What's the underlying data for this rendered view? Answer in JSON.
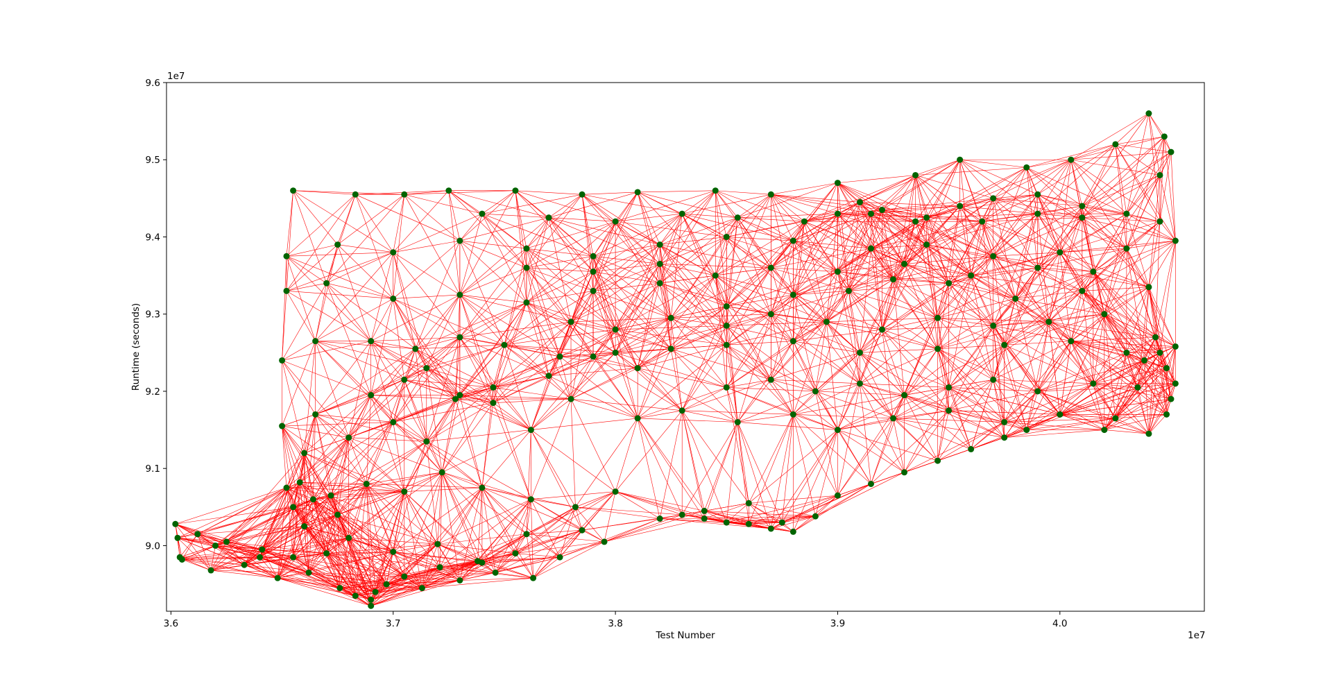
{
  "chart_data": {
    "type": "scatter",
    "title": "",
    "xlabel": "Test Number",
    "ylabel": "Runtime (seconds)",
    "x_offset_label": "1e7",
    "y_offset_label": "1e7",
    "xlim": [
      3.598,
      4.065
    ],
    "ylim": [
      8.915,
      9.6
    ],
    "xticks": [
      3.6,
      3.7,
      3.8,
      3.9,
      4.0
    ],
    "xtick_labels": [
      "3.6",
      "3.7",
      "3.8",
      "3.9",
      "4.0"
    ],
    "yticks": [
      9.0,
      9.1,
      9.2,
      9.3,
      9.4,
      9.5,
      9.6
    ],
    "ytick_labels": [
      "9.0",
      "9.1",
      "9.2",
      "9.3",
      "9.4",
      "9.5",
      "9.6"
    ],
    "grid": false,
    "legend": "none",
    "point_color": "#006400",
    "edge_color": "#ff0000",
    "series": [
      {
        "x": [
          3.602,
          3.603,
          3.605,
          3.612,
          3.618,
          3.625,
          3.633,
          3.641,
          3.648,
          3.655,
          3.662,
          3.67,
          3.676,
          3.683,
          3.69,
          3.697,
          3.705,
          3.713,
          3.721,
          3.73,
          3.738,
          3.746,
          3.755,
          3.763,
          3.604,
          3.62,
          3.64,
          3.66,
          3.68,
          3.7,
          3.72,
          3.74,
          3.76,
          3.775,
          3.785,
          3.795,
          3.69,
          3.692,
          3.675,
          3.664,
          3.655,
          3.652,
          3.658,
          3.672,
          3.688,
          3.705,
          3.722,
          3.74,
          3.762,
          3.782,
          3.8,
          3.82,
          3.84,
          3.86,
          3.875,
          3.89,
          3.88,
          3.87,
          3.86,
          3.85,
          3.84,
          3.83,
          3.9,
          3.915,
          3.93,
          3.945,
          3.96,
          3.975,
          3.985,
          4.0,
          4.02,
          4.04,
          4.048,
          4.05,
          4.052,
          4.048,
          4.045,
          4.043,
          4.038,
          3.66,
          3.68,
          3.7,
          3.715,
          3.728,
          3.745,
          3.762,
          3.78,
          3.65,
          3.665,
          3.69,
          3.705,
          3.715,
          3.73,
          3.745,
          3.77,
          3.79,
          3.81,
          3.65,
          3.665,
          3.69,
          3.71,
          3.73,
          3.75,
          3.775,
          3.8,
          3.825,
          3.85,
          3.88,
          3.91,
          3.945,
          3.975,
          4.005,
          4.03,
          4.052,
          3.652,
          3.67,
          3.7,
          3.73,
          3.76,
          3.79,
          3.82,
          3.85,
          3.88,
          3.905,
          3.925,
          3.95,
          3.98,
          4.01,
          4.04,
          3.652,
          3.675,
          3.7,
          3.73,
          3.76,
          3.79,
          3.82,
          3.85,
          3.88,
          3.915,
          3.94,
          3.97,
          4.0,
          4.03,
          4.052,
          3.655,
          3.683,
          3.705,
          3.725,
          3.755,
          3.785,
          3.81,
          3.845,
          3.87,
          3.9,
          3.935,
          3.955,
          3.985,
          4.005,
          4.025,
          4.04,
          4.047,
          4.05,
          4.045,
          3.9,
          3.91,
          3.92,
          3.935,
          3.955,
          3.97,
          3.99,
          4.01,
          4.03,
          4.045,
          3.85,
          3.87,
          3.89,
          3.91,
          3.93,
          3.95,
          3.97,
          3.99,
          4.015,
          4.035,
          3.81,
          3.83,
          3.855,
          3.88,
          3.9,
          3.925,
          3.95,
          3.975,
          4.0,
          4.025,
          3.78,
          3.8,
          3.825,
          3.85,
          3.87,
          3.895,
          3.92,
          3.945,
          3.97,
          3.995,
          4.02,
          3.76,
          3.79,
          3.82,
          3.845,
          3.87,
          3.9,
          3.93,
          3.96,
          3.99,
          4.015,
          3.74,
          3.77,
          3.8,
          3.83,
          3.855,
          3.885,
          3.915,
          3.94,
          3.965,
          3.99,
          4.01
        ],
        "y": [
          9.028,
          9.01,
          8.982,
          9.015,
          8.968,
          9.005,
          8.975,
          8.995,
          8.958,
          8.985,
          8.965,
          8.99,
          8.945,
          8.935,
          8.922,
          8.95,
          8.96,
          8.945,
          8.972,
          8.955,
          8.98,
          8.965,
          8.99,
          8.958,
          8.985,
          9.0,
          8.985,
          9.025,
          9.01,
          8.992,
          9.002,
          8.978,
          9.015,
          8.985,
          9.02,
          9.005,
          8.93,
          8.94,
          9.04,
          9.06,
          9.05,
          9.075,
          9.082,
          9.065,
          9.08,
          9.07,
          9.095,
          9.075,
          9.06,
          9.05,
          9.07,
          9.035,
          9.045,
          9.055,
          9.03,
          9.038,
          9.018,
          9.022,
          9.028,
          9.03,
          9.035,
          9.04,
          9.065,
          9.08,
          9.095,
          9.11,
          9.125,
          9.14,
          9.15,
          9.17,
          9.15,
          9.145,
          9.17,
          9.19,
          9.21,
          9.23,
          9.25,
          9.27,
          9.24,
          9.12,
          9.14,
          9.16,
          9.135,
          9.19,
          9.185,
          9.15,
          9.19,
          9.155,
          9.17,
          9.195,
          9.215,
          9.23,
          9.195,
          9.205,
          9.22,
          9.245,
          9.23,
          9.24,
          9.265,
          9.265,
          9.255,
          9.27,
          9.26,
          9.245,
          9.25,
          9.255,
          9.26,
          9.265,
          9.25,
          9.255,
          9.26,
          9.265,
          9.25,
          9.258,
          9.33,
          9.34,
          9.32,
          9.325,
          9.315,
          9.33,
          9.34,
          9.31,
          9.325,
          9.33,
          9.345,
          9.34,
          9.32,
          9.33,
          9.335,
          9.375,
          9.39,
          9.38,
          9.395,
          9.385,
          9.375,
          9.39,
          9.4,
          9.395,
          9.385,
          9.39,
          9.375,
          9.38,
          9.385,
          9.395,
          9.46,
          9.455,
          9.455,
          9.46,
          9.46,
          9.455,
          9.458,
          9.46,
          9.455,
          9.47,
          9.48,
          9.5,
          9.49,
          9.5,
          9.52,
          9.56,
          9.53,
          9.51,
          9.48,
          9.43,
          9.445,
          9.435,
          9.42,
          9.44,
          9.45,
          9.455,
          9.44,
          9.43,
          9.42,
          9.205,
          9.215,
          9.2,
          9.21,
          9.195,
          9.205,
          9.215,
          9.2,
          9.21,
          9.205,
          9.165,
          9.175,
          9.16,
          9.17,
          9.15,
          9.165,
          9.175,
          9.16,
          9.17,
          9.165,
          9.29,
          9.28,
          9.295,
          9.285,
          9.3,
          9.29,
          9.28,
          9.295,
          9.285,
          9.29,
          9.3,
          9.36,
          9.355,
          9.365,
          9.35,
          9.36,
          9.355,
          9.365,
          9.35,
          9.36,
          9.355,
          9.43,
          9.425,
          9.42,
          9.43,
          9.425,
          9.42,
          9.43,
          9.425,
          9.42,
          9.43,
          9.425
        ]
      }
    ]
  }
}
